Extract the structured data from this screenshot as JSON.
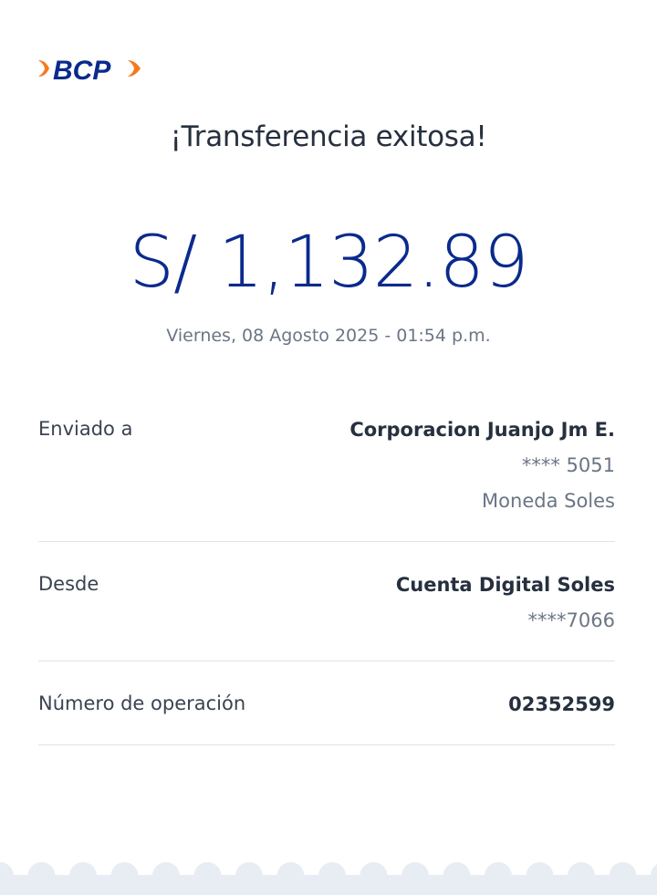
{
  "brand": {
    "logo_text": "BCP",
    "colors": {
      "blue": "#0a2a8c",
      "orange": "#f47b20"
    }
  },
  "title": "¡Transferencia exitosa!",
  "amount": "S/ 1,132.89",
  "datetime": "Viernes, 08 Agosto 2025 - 01:54 p.m.",
  "details": [
    {
      "label": "Enviado a",
      "lines": [
        "Corporacion Juanjo Jm E.",
        "**** 5051",
        "Moneda Soles"
      ]
    },
    {
      "label": "Desde",
      "lines": [
        "Cuenta Digital Soles",
        "****7066"
      ]
    },
    {
      "label": "Número de operación",
      "lines": [
        "02352599"
      ]
    }
  ]
}
